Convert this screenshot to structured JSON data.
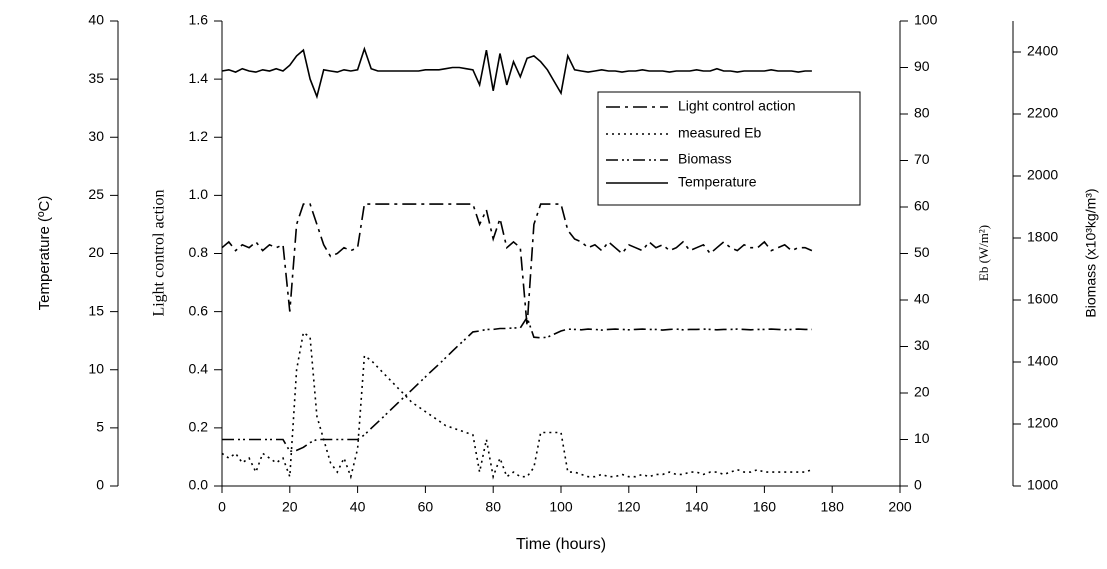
{
  "chart_data": {
    "type": "line",
    "xlabel": "Time (hours)",
    "xlim": [
      0,
      200
    ],
    "xticks": [
      0,
      20,
      40,
      60,
      80,
      100,
      120,
      140,
      160,
      180,
      200
    ],
    "ylabel": "Light control action",
    "ylim": [
      0,
      1.6
    ],
    "yticks": [
      {
        "value": 0,
        "label": "0.0"
      },
      0.2,
      0.4,
      0.6,
      0.8,
      {
        "value": 1,
        "label": "1.0"
      },
      1.2,
      1.4,
      1.6
    ],
    "y2label": "Eb (W/m²)",
    "y2lim": [
      0,
      100
    ],
    "y2ticks": [
      0,
      10,
      20,
      30,
      40,
      50,
      60,
      70,
      80,
      90,
      100
    ],
    "y3label": "Temperature (ºC)",
    "y3lim": [
      0,
      40
    ],
    "y3ticks": [
      0,
      5,
      10,
      15,
      20,
      25,
      30,
      35,
      40
    ],
    "y4label": "Biomass (x10³kg/m³)",
    "y4lim": [
      1000,
      2500
    ],
    "y4ticks": [
      1000,
      1200,
      1400,
      1600,
      1800,
      2000,
      2200,
      2400
    ],
    "legend": "upper right",
    "x": [
      0,
      2,
      4,
      6,
      8,
      10,
      12,
      14,
      16,
      18,
      20,
      22,
      24,
      26,
      28,
      30,
      32,
      34,
      36,
      38,
      40,
      42,
      44,
      46,
      48,
      50,
      52,
      54,
      56,
      58,
      60,
      62,
      64,
      66,
      68,
      70,
      72,
      74,
      76,
      78,
      80,
      82,
      84,
      86,
      88,
      90,
      92,
      94,
      96,
      98,
      100,
      102,
      104,
      106,
      108,
      110,
      112,
      114,
      116,
      118,
      120,
      122,
      124,
      126,
      128,
      130,
      132,
      134,
      136,
      138,
      140,
      142,
      144,
      146,
      148,
      150,
      152,
      154,
      156,
      158,
      160,
      162,
      164,
      166,
      168,
      170,
      172,
      174
    ],
    "series": [
      {
        "name": "Light control action",
        "axis": "y",
        "color": "#000000",
        "dash": "14,5,3,5",
        "values": [
          0.82,
          0.84,
          0.81,
          0.83,
          0.82,
          0.84,
          0.81,
          0.83,
          0.82,
          0.83,
          0.6,
          0.9,
          0.97,
          0.97,
          0.9,
          0.83,
          0.79,
          0.8,
          0.82,
          0.81,
          0.82,
          0.97,
          0.97,
          0.97,
          0.97,
          0.97,
          0.97,
          0.97,
          0.97,
          0.97,
          0.97,
          0.97,
          0.97,
          0.97,
          0.97,
          0.97,
          0.97,
          0.97,
          0.9,
          0.95,
          0.85,
          0.92,
          0.82,
          0.84,
          0.82,
          0.55,
          0.9,
          0.97,
          0.97,
          0.97,
          0.97,
          0.88,
          0.85,
          0.84,
          0.82,
          0.83,
          0.81,
          0.84,
          0.82,
          0.8,
          0.83,
          0.82,
          0.81,
          0.84,
          0.82,
          0.83,
          0.81,
          0.82,
          0.84,
          0.81,
          0.82,
          0.83,
          0.8,
          0.82,
          0.84,
          0.82,
          0.81,
          0.83,
          0.82,
          0.82,
          0.84,
          0.81,
          0.82,
          0.83,
          0.81,
          0.82,
          0.82,
          0.81
        ]
      },
      {
        "name": "measured Eb",
        "axis": "y2",
        "color": "#000000",
        "dash": "2,4",
        "values": [
          7,
          6,
          7,
          5,
          6,
          3,
          7,
          6,
          5,
          6,
          2,
          25,
          33,
          32,
          15,
          10,
          5,
          3,
          6,
          2,
          8,
          28,
          27,
          25.5,
          24,
          22.5,
          21,
          19.5,
          18,
          17,
          16,
          15,
          14,
          13,
          12.5,
          12,
          11.5,
          11,
          3,
          10,
          2,
          6,
          2,
          3,
          2,
          2,
          4,
          11.5,
          11.5,
          11.5,
          11.5,
          3,
          3,
          2.5,
          2,
          2,
          2.5,
          2,
          2,
          2.5,
          2,
          2,
          2.5,
          2,
          2.5,
          2.5,
          3,
          2.5,
          2.5,
          3,
          3,
          2.5,
          3,
          3,
          2.5,
          3,
          3.5,
          3,
          3,
          3.5,
          3,
          3,
          3,
          3,
          3,
          3,
          3,
          3.5
        ]
      },
      {
        "name": "Biomass",
        "axis": "y4",
        "color": "#000000",
        "dash": "12,4,2,3,2,4",
        "values": [
          1150,
          1150,
          1150,
          1150,
          1150,
          1150,
          1150,
          1150,
          1150,
          1150,
          1112,
          1115,
          1125,
          1140,
          1150,
          1150,
          1150,
          1150,
          1150,
          1150,
          1150,
          1165,
          1186,
          1206,
          1227,
          1248,
          1269,
          1290,
          1310,
          1331,
          1352,
          1373,
          1393,
          1414,
          1435,
          1456,
          1476,
          1497,
          1500,
          1505,
          1505,
          1508,
          1508,
          1510,
          1510,
          1544,
          1480,
          1478,
          1480,
          1490,
          1500,
          1506,
          1505,
          1504,
          1506,
          1505,
          1503,
          1505,
          1506,
          1505,
          1504,
          1505,
          1506,
          1505,
          1505,
          1503,
          1505,
          1506,
          1504,
          1505,
          1505,
          1506,
          1505,
          1504,
          1505,
          1505,
          1506,
          1505,
          1504,
          1505,
          1505,
          1506,
          1505,
          1504,
          1505,
          1506,
          1505,
          1505
        ]
      },
      {
        "name": "Temperature",
        "axis": "y3",
        "color": "#000000",
        "dash": "none",
        "values": [
          35.7,
          35.8,
          35.6,
          35.9,
          35.7,
          35.6,
          35.8,
          35.7,
          35.9,
          35.7,
          36.2,
          37.0,
          37.5,
          35.0,
          33.5,
          35.8,
          35.7,
          35.6,
          35.8,
          35.7,
          35.8,
          37.6,
          35.9,
          35.7,
          35.7,
          35.7,
          35.7,
          35.7,
          35.7,
          35.7,
          35.8,
          35.8,
          35.8,
          35.9,
          36.0,
          36.0,
          35.9,
          35.8,
          34.5,
          37.5,
          34.0,
          37.2,
          34.5,
          36.5,
          35.2,
          36.8,
          37.0,
          36.5,
          35.8,
          34.8,
          33.8,
          37.0,
          35.8,
          35.7,
          35.6,
          35.7,
          35.8,
          35.7,
          35.7,
          35.6,
          35.7,
          35.7,
          35.8,
          35.7,
          35.7,
          35.7,
          35.6,
          35.7,
          35.7,
          35.7,
          35.8,
          35.7,
          35.7,
          35.9,
          35.7,
          35.7,
          35.6,
          35.7,
          35.7,
          35.7,
          35.7,
          35.8,
          35.7,
          35.7,
          35.7,
          35.6,
          35.7,
          35.7
        ]
      }
    ]
  }
}
